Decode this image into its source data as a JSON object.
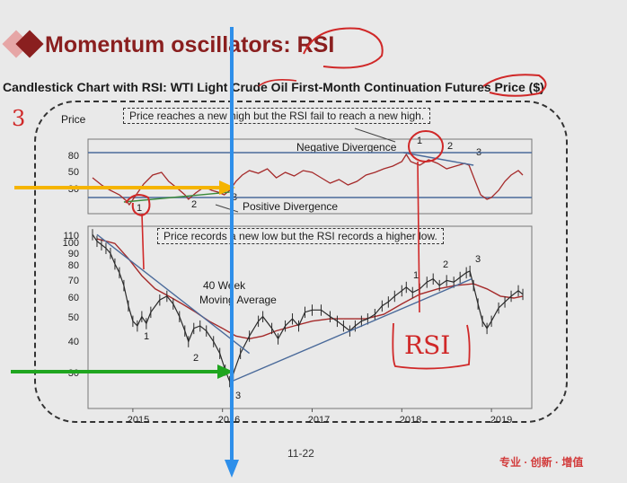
{
  "slide": {
    "title": "Momentum oscillators: RSI",
    "accent_color": "#8a1f1f",
    "page_number": "11-22",
    "brand": "专业 · 创新 · 增值"
  },
  "chart_data": {
    "type": "line",
    "title": "Candlestick Chart with RSI: WTI Light Crude Oil First-Month Continuation Futures Price ($)",
    "ylabel": "Price",
    "x": {
      "ticks": [
        "2015",
        "2016",
        "2017",
        "2018",
        "2019"
      ],
      "range": [
        2014.5,
        2019.45
      ]
    },
    "rsi_panel": {
      "ticks": [
        80,
        50,
        30
      ],
      "ylim": [
        12,
        95
      ],
      "reference_lines": [
        80,
        30
      ],
      "series": [
        {
          "x": 2014.55,
          "y": 52
        },
        {
          "x": 2014.65,
          "y": 44
        },
        {
          "x": 2014.75,
          "y": 38
        },
        {
          "x": 2014.85,
          "y": 33
        },
        {
          "x": 2014.92,
          "y": 27
        },
        {
          "x": 2014.96,
          "y": 22
        },
        {
          "x": 2015.03,
          "y": 32
        },
        {
          "x": 2015.12,
          "y": 45
        },
        {
          "x": 2015.22,
          "y": 55
        },
        {
          "x": 2015.32,
          "y": 58
        },
        {
          "x": 2015.4,
          "y": 48
        },
        {
          "x": 2015.5,
          "y": 40
        },
        {
          "x": 2015.58,
          "y": 33
        },
        {
          "x": 2015.62,
          "y": 28
        },
        {
          "x": 2015.7,
          "y": 35
        },
        {
          "x": 2015.8,
          "y": 42
        },
        {
          "x": 2015.88,
          "y": 38
        },
        {
          "x": 2015.95,
          "y": 36
        },
        {
          "x": 2016.02,
          "y": 33
        },
        {
          "x": 2016.08,
          "y": 38
        },
        {
          "x": 2016.15,
          "y": 48
        },
        {
          "x": 2016.22,
          "y": 55
        },
        {
          "x": 2016.3,
          "y": 60
        },
        {
          "x": 2016.4,
          "y": 57
        },
        {
          "x": 2016.5,
          "y": 62
        },
        {
          "x": 2016.6,
          "y": 52
        },
        {
          "x": 2016.7,
          "y": 58
        },
        {
          "x": 2016.8,
          "y": 54
        },
        {
          "x": 2016.9,
          "y": 60
        },
        {
          "x": 2017.0,
          "y": 58
        },
        {
          "x": 2017.1,
          "y": 52
        },
        {
          "x": 2017.2,
          "y": 46
        },
        {
          "x": 2017.3,
          "y": 50
        },
        {
          "x": 2017.4,
          "y": 44
        },
        {
          "x": 2017.5,
          "y": 48
        },
        {
          "x": 2017.6,
          "y": 55
        },
        {
          "x": 2017.7,
          "y": 58
        },
        {
          "x": 2017.8,
          "y": 62
        },
        {
          "x": 2017.9,
          "y": 65
        },
        {
          "x": 2018.0,
          "y": 70
        },
        {
          "x": 2018.05,
          "y": 78
        },
        {
          "x": 2018.1,
          "y": 70
        },
        {
          "x": 2018.2,
          "y": 66
        },
        {
          "x": 2018.3,
          "y": 72
        },
        {
          "x": 2018.4,
          "y": 68
        },
        {
          "x": 2018.5,
          "y": 62
        },
        {
          "x": 2018.6,
          "y": 65
        },
        {
          "x": 2018.7,
          "y": 68
        },
        {
          "x": 2018.75,
          "y": 66
        },
        {
          "x": 2018.82,
          "y": 48
        },
        {
          "x": 2018.88,
          "y": 33
        },
        {
          "x": 2018.95,
          "y": 28
        },
        {
          "x": 2019.0,
          "y": 30
        },
        {
          "x": 2019.08,
          "y": 38
        },
        {
          "x": 2019.15,
          "y": 48
        },
        {
          "x": 2019.22,
          "y": 55
        },
        {
          "x": 2019.3,
          "y": 60
        },
        {
          "x": 2019.35,
          "y": 55
        }
      ]
    },
    "price_panel": {
      "ticks": [
        110,
        100,
        90,
        80,
        70,
        60,
        50,
        40,
        30
      ],
      "ylim": [
        22,
        112
      ],
      "log_scale": true,
      "price": [
        {
          "x": 2014.55,
          "y": 104
        },
        {
          "x": 2014.6,
          "y": 98
        },
        {
          "x": 2014.65,
          "y": 95
        },
        {
          "x": 2014.7,
          "y": 92
        },
        {
          "x": 2014.75,
          "y": 88
        },
        {
          "x": 2014.8,
          "y": 80
        },
        {
          "x": 2014.85,
          "y": 74
        },
        {
          "x": 2014.9,
          "y": 66
        },
        {
          "x": 2014.95,
          "y": 55
        },
        {
          "x": 2015.0,
          "y": 48
        },
        {
          "x": 2015.05,
          "y": 46
        },
        {
          "x": 2015.1,
          "y": 50
        },
        {
          "x": 2015.15,
          "y": 47
        },
        {
          "x": 2015.2,
          "y": 52
        },
        {
          "x": 2015.3,
          "y": 58
        },
        {
          "x": 2015.38,
          "y": 60
        },
        {
          "x": 2015.45,
          "y": 56
        },
        {
          "x": 2015.52,
          "y": 50
        },
        {
          "x": 2015.58,
          "y": 44
        },
        {
          "x": 2015.62,
          "y": 40
        },
        {
          "x": 2015.68,
          "y": 45
        },
        {
          "x": 2015.75,
          "y": 46
        },
        {
          "x": 2015.82,
          "y": 44
        },
        {
          "x": 2015.9,
          "y": 40
        },
        {
          "x": 2015.97,
          "y": 36
        },
        {
          "x": 2016.03,
          "y": 31
        },
        {
          "x": 2016.08,
          "y": 28
        },
        {
          "x": 2016.12,
          "y": 30
        },
        {
          "x": 2016.2,
          "y": 36
        },
        {
          "x": 2016.3,
          "y": 42
        },
        {
          "x": 2016.4,
          "y": 48
        },
        {
          "x": 2016.45,
          "y": 50
        },
        {
          "x": 2016.55,
          "y": 45
        },
        {
          "x": 2016.62,
          "y": 41
        },
        {
          "x": 2016.7,
          "y": 46
        },
        {
          "x": 2016.78,
          "y": 49
        },
        {
          "x": 2016.85,
          "y": 46
        },
        {
          "x": 2016.92,
          "y": 52
        },
        {
          "x": 2017.0,
          "y": 53
        },
        {
          "x": 2017.1,
          "y": 53
        },
        {
          "x": 2017.2,
          "y": 50
        },
        {
          "x": 2017.28,
          "y": 48
        },
        {
          "x": 2017.35,
          "y": 46
        },
        {
          "x": 2017.42,
          "y": 44
        },
        {
          "x": 2017.48,
          "y": 46
        },
        {
          "x": 2017.55,
          "y": 48
        },
        {
          "x": 2017.62,
          "y": 49
        },
        {
          "x": 2017.7,
          "y": 51
        },
        {
          "x": 2017.78,
          "y": 55
        },
        {
          "x": 2017.85,
          "y": 57
        },
        {
          "x": 2017.92,
          "y": 60
        },
        {
          "x": 2018.0,
          "y": 63
        },
        {
          "x": 2018.05,
          "y": 65
        },
        {
          "x": 2018.12,
          "y": 62
        },
        {
          "x": 2018.2,
          "y": 64
        },
        {
          "x": 2018.28,
          "y": 68
        },
        {
          "x": 2018.35,
          "y": 70
        },
        {
          "x": 2018.42,
          "y": 66
        },
        {
          "x": 2018.5,
          "y": 69
        },
        {
          "x": 2018.58,
          "y": 68
        },
        {
          "x": 2018.65,
          "y": 71
        },
        {
          "x": 2018.72,
          "y": 74
        },
        {
          "x": 2018.76,
          "y": 75
        },
        {
          "x": 2018.8,
          "y": 66
        },
        {
          "x": 2018.85,
          "y": 56
        },
        {
          "x": 2018.9,
          "y": 48
        },
        {
          "x": 2018.95,
          "y": 45
        },
        {
          "x": 2019.0,
          "y": 48
        },
        {
          "x": 2019.08,
          "y": 54
        },
        {
          "x": 2019.15,
          "y": 57
        },
        {
          "x": 2019.22,
          "y": 60
        },
        {
          "x": 2019.3,
          "y": 63
        },
        {
          "x": 2019.35,
          "y": 61
        }
      ],
      "moving_average": [
        {
          "x": 2014.6,
          "y": 100
        },
        {
          "x": 2014.8,
          "y": 96
        },
        {
          "x": 2014.95,
          "y": 84
        },
        {
          "x": 2015.1,
          "y": 72
        },
        {
          "x": 2015.25,
          "y": 64
        },
        {
          "x": 2015.4,
          "y": 60
        },
        {
          "x": 2015.55,
          "y": 56
        },
        {
          "x": 2015.7,
          "y": 52
        },
        {
          "x": 2015.85,
          "y": 48
        },
        {
          "x": 2016.0,
          "y": 45
        },
        {
          "x": 2016.15,
          "y": 42
        },
        {
          "x": 2016.3,
          "y": 41
        },
        {
          "x": 2016.45,
          "y": 42
        },
        {
          "x": 2016.6,
          "y": 44
        },
        {
          "x": 2016.8,
          "y": 46
        },
        {
          "x": 2017.0,
          "y": 48
        },
        {
          "x": 2017.2,
          "y": 49
        },
        {
          "x": 2017.4,
          "y": 49
        },
        {
          "x": 2017.6,
          "y": 49
        },
        {
          "x": 2017.8,
          "y": 51
        },
        {
          "x": 2018.0,
          "y": 56
        },
        {
          "x": 2018.2,
          "y": 61
        },
        {
          "x": 2018.4,
          "y": 64
        },
        {
          "x": 2018.6,
          "y": 66
        },
        {
          "x": 2018.8,
          "y": 67
        },
        {
          "x": 2018.95,
          "y": 64
        },
        {
          "x": 2019.1,
          "y": 60
        },
        {
          "x": 2019.25,
          "y": 59
        },
        {
          "x": 2019.35,
          "y": 60
        }
      ]
    },
    "annotations": {
      "price_high_note": "Price reaches a new high but the RSI fail to reach a new high.",
      "price_low_note": "Price records a new low but the RSI records a higher low.",
      "negative_divergence": "Negative Divergence",
      "positive_divergence": "Positive Divergence",
      "ma_label_line1": "40 Week",
      "ma_label_line2": "Moving Average",
      "rsi_handwritten": "RSI",
      "margin_scribble": "3",
      "rsi_points_low": [
        "1",
        "2",
        "3"
      ],
      "rsi_points_high": [
        "1",
        "2",
        "3"
      ],
      "price_points_low": [
        "1",
        "2",
        "3"
      ],
      "price_points_high": [
        "1",
        "2",
        "3"
      ]
    },
    "grid": false,
    "colors": {
      "price": "#2a2a2a",
      "rsi": "#a52a2a",
      "moving_average": "#a52a2a",
      "trendline": "#4a6a9a",
      "handwriting": "#d02828",
      "arrow_yellow": "#f5b400",
      "arrow_green": "#1fa51f",
      "arrow_blue": "#2e8fea"
    }
  }
}
